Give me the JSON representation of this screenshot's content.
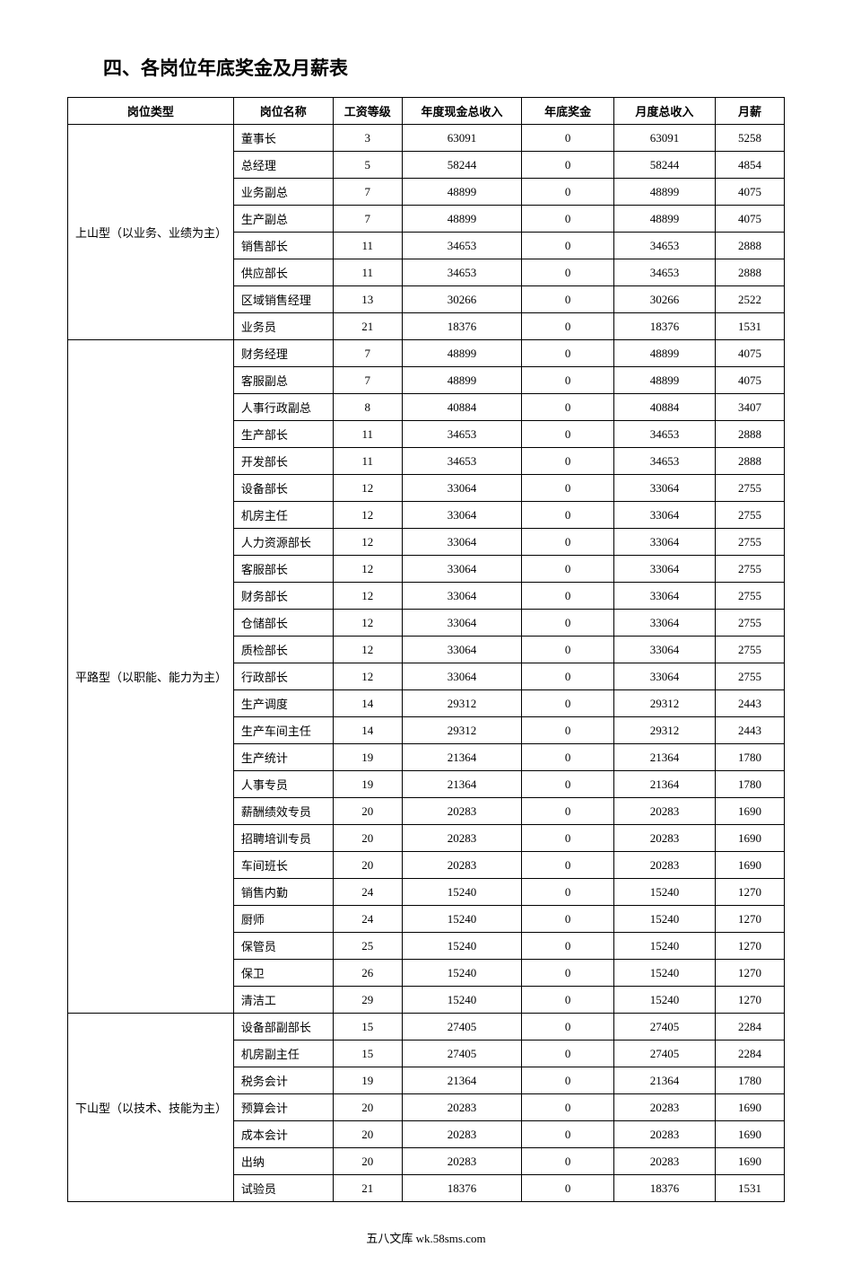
{
  "title": "四、各岗位年底奖金及月薪表",
  "footer": "五八文库 wk.58sms.com",
  "table": {
    "headers": {
      "type": "岗位类型",
      "name": "岗位名称",
      "level": "工资等级",
      "annual": "年度现金总收入",
      "bonus": "年底奖金",
      "monthly": "月度总收入",
      "salary": "月薪"
    },
    "groups": [
      {
        "type": "上山型（以业务、业绩为主）",
        "rows": [
          {
            "name": "董事长",
            "level": "3",
            "annual": "63091",
            "bonus": "0",
            "monthly": "63091",
            "salary": "5258"
          },
          {
            "name": "总经理",
            "level": "5",
            "annual": "58244",
            "bonus": "0",
            "monthly": "58244",
            "salary": "4854"
          },
          {
            "name": "业务副总",
            "level": "7",
            "annual": "48899",
            "bonus": "0",
            "monthly": "48899",
            "salary": "4075"
          },
          {
            "name": "生产副总",
            "level": "7",
            "annual": "48899",
            "bonus": "0",
            "monthly": "48899",
            "salary": "4075"
          },
          {
            "name": "销售部长",
            "level": "11",
            "annual": "34653",
            "bonus": "0",
            "monthly": "34653",
            "salary": "2888"
          },
          {
            "name": "供应部长",
            "level": "11",
            "annual": "34653",
            "bonus": "0",
            "monthly": "34653",
            "salary": "2888"
          },
          {
            "name": "区域销售经理",
            "level": "13",
            "annual": "30266",
            "bonus": "0",
            "monthly": "30266",
            "salary": "2522"
          },
          {
            "name": "业务员",
            "level": "21",
            "annual": "18376",
            "bonus": "0",
            "monthly": "18376",
            "salary": "1531"
          }
        ]
      },
      {
        "type": "平路型（以职能、能力为主）",
        "rows": [
          {
            "name": "财务经理",
            "level": "7",
            "annual": "48899",
            "bonus": "0",
            "monthly": "48899",
            "salary": "4075"
          },
          {
            "name": "客服副总",
            "level": "7",
            "annual": "48899",
            "bonus": "0",
            "monthly": "48899",
            "salary": "4075"
          },
          {
            "name": "人事行政副总",
            "level": "8",
            "annual": "40884",
            "bonus": "0",
            "monthly": "40884",
            "salary": "3407"
          },
          {
            "name": "生产部长",
            "level": "11",
            "annual": "34653",
            "bonus": "0",
            "monthly": "34653",
            "salary": "2888"
          },
          {
            "name": "开发部长",
            "level": "11",
            "annual": "34653",
            "bonus": "0",
            "monthly": "34653",
            "salary": "2888"
          },
          {
            "name": "设备部长",
            "level": "12",
            "annual": "33064",
            "bonus": "0",
            "monthly": "33064",
            "salary": "2755"
          },
          {
            "name": "机房主任",
            "level": "12",
            "annual": "33064",
            "bonus": "0",
            "monthly": "33064",
            "salary": "2755"
          },
          {
            "name": "人力资源部长",
            "level": "12",
            "annual": "33064",
            "bonus": "0",
            "monthly": "33064",
            "salary": "2755"
          },
          {
            "name": "客服部长",
            "level": "12",
            "annual": "33064",
            "bonus": "0",
            "monthly": "33064",
            "salary": "2755"
          },
          {
            "name": "财务部长",
            "level": "12",
            "annual": "33064",
            "bonus": "0",
            "monthly": "33064",
            "salary": "2755"
          },
          {
            "name": "仓储部长",
            "level": "12",
            "annual": "33064",
            "bonus": "0",
            "monthly": "33064",
            "salary": "2755"
          },
          {
            "name": "质检部长",
            "level": "12",
            "annual": "33064",
            "bonus": "0",
            "monthly": "33064",
            "salary": "2755"
          },
          {
            "name": "行政部长",
            "level": "12",
            "annual": "33064",
            "bonus": "0",
            "monthly": "33064",
            "salary": "2755"
          },
          {
            "name": "生产调度",
            "level": "14",
            "annual": "29312",
            "bonus": "0",
            "monthly": "29312",
            "salary": "2443"
          },
          {
            "name": "生产车间主任",
            "level": "14",
            "annual": "29312",
            "bonus": "0",
            "monthly": "29312",
            "salary": "2443"
          },
          {
            "name": "生产统计",
            "level": "19",
            "annual": "21364",
            "bonus": "0",
            "monthly": "21364",
            "salary": "1780"
          },
          {
            "name": "人事专员",
            "level": "19",
            "annual": "21364",
            "bonus": "0",
            "monthly": "21364",
            "salary": "1780"
          },
          {
            "name": "薪酬绩效专员",
            "level": "20",
            "annual": "20283",
            "bonus": "0",
            "monthly": "20283",
            "salary": "1690"
          },
          {
            "name": "招聘培训专员",
            "level": "20",
            "annual": "20283",
            "bonus": "0",
            "monthly": "20283",
            "salary": "1690"
          },
          {
            "name": "车间班长",
            "level": "20",
            "annual": "20283",
            "bonus": "0",
            "monthly": "20283",
            "salary": "1690"
          },
          {
            "name": "销售内勤",
            "level": "24",
            "annual": "15240",
            "bonus": "0",
            "monthly": "15240",
            "salary": "1270"
          },
          {
            "name": "厨师",
            "level": "24",
            "annual": "15240",
            "bonus": "0",
            "monthly": "15240",
            "salary": "1270"
          },
          {
            "name": "保管员",
            "level": "25",
            "annual": "15240",
            "bonus": "0",
            "monthly": "15240",
            "salary": "1270"
          },
          {
            "name": "保卫",
            "level": "26",
            "annual": "15240",
            "bonus": "0",
            "monthly": "15240",
            "salary": "1270"
          },
          {
            "name": "清洁工",
            "level": "29",
            "annual": "15240",
            "bonus": "0",
            "monthly": "15240",
            "salary": "1270"
          }
        ]
      },
      {
        "type": "下山型（以技术、技能为主）",
        "rows": [
          {
            "name": "设备部副部长",
            "level": "15",
            "annual": "27405",
            "bonus": "0",
            "monthly": "27405",
            "salary": "2284"
          },
          {
            "name": "机房副主任",
            "level": "15",
            "annual": "27405",
            "bonus": "0",
            "monthly": "27405",
            "salary": "2284"
          },
          {
            "name": "税务会计",
            "level": "19",
            "annual": "21364",
            "bonus": "0",
            "monthly": "21364",
            "salary": "1780"
          },
          {
            "name": "预算会计",
            "level": "20",
            "annual": "20283",
            "bonus": "0",
            "monthly": "20283",
            "salary": "1690"
          },
          {
            "name": "成本会计",
            "level": "20",
            "annual": "20283",
            "bonus": "0",
            "monthly": "20283",
            "salary": "1690"
          },
          {
            "name": "出纳",
            "level": "20",
            "annual": "20283",
            "bonus": "0",
            "monthly": "20283",
            "salary": "1690"
          },
          {
            "name": "试验员",
            "level": "21",
            "annual": "18376",
            "bonus": "0",
            "monthly": "18376",
            "salary": "1531"
          }
        ]
      }
    ]
  },
  "styling": {
    "background_color": "#ffffff",
    "border_color": "#000000",
    "text_color": "#000000",
    "title_fontsize": 21,
    "body_fontsize": 13,
    "font_family": "SimSun"
  }
}
